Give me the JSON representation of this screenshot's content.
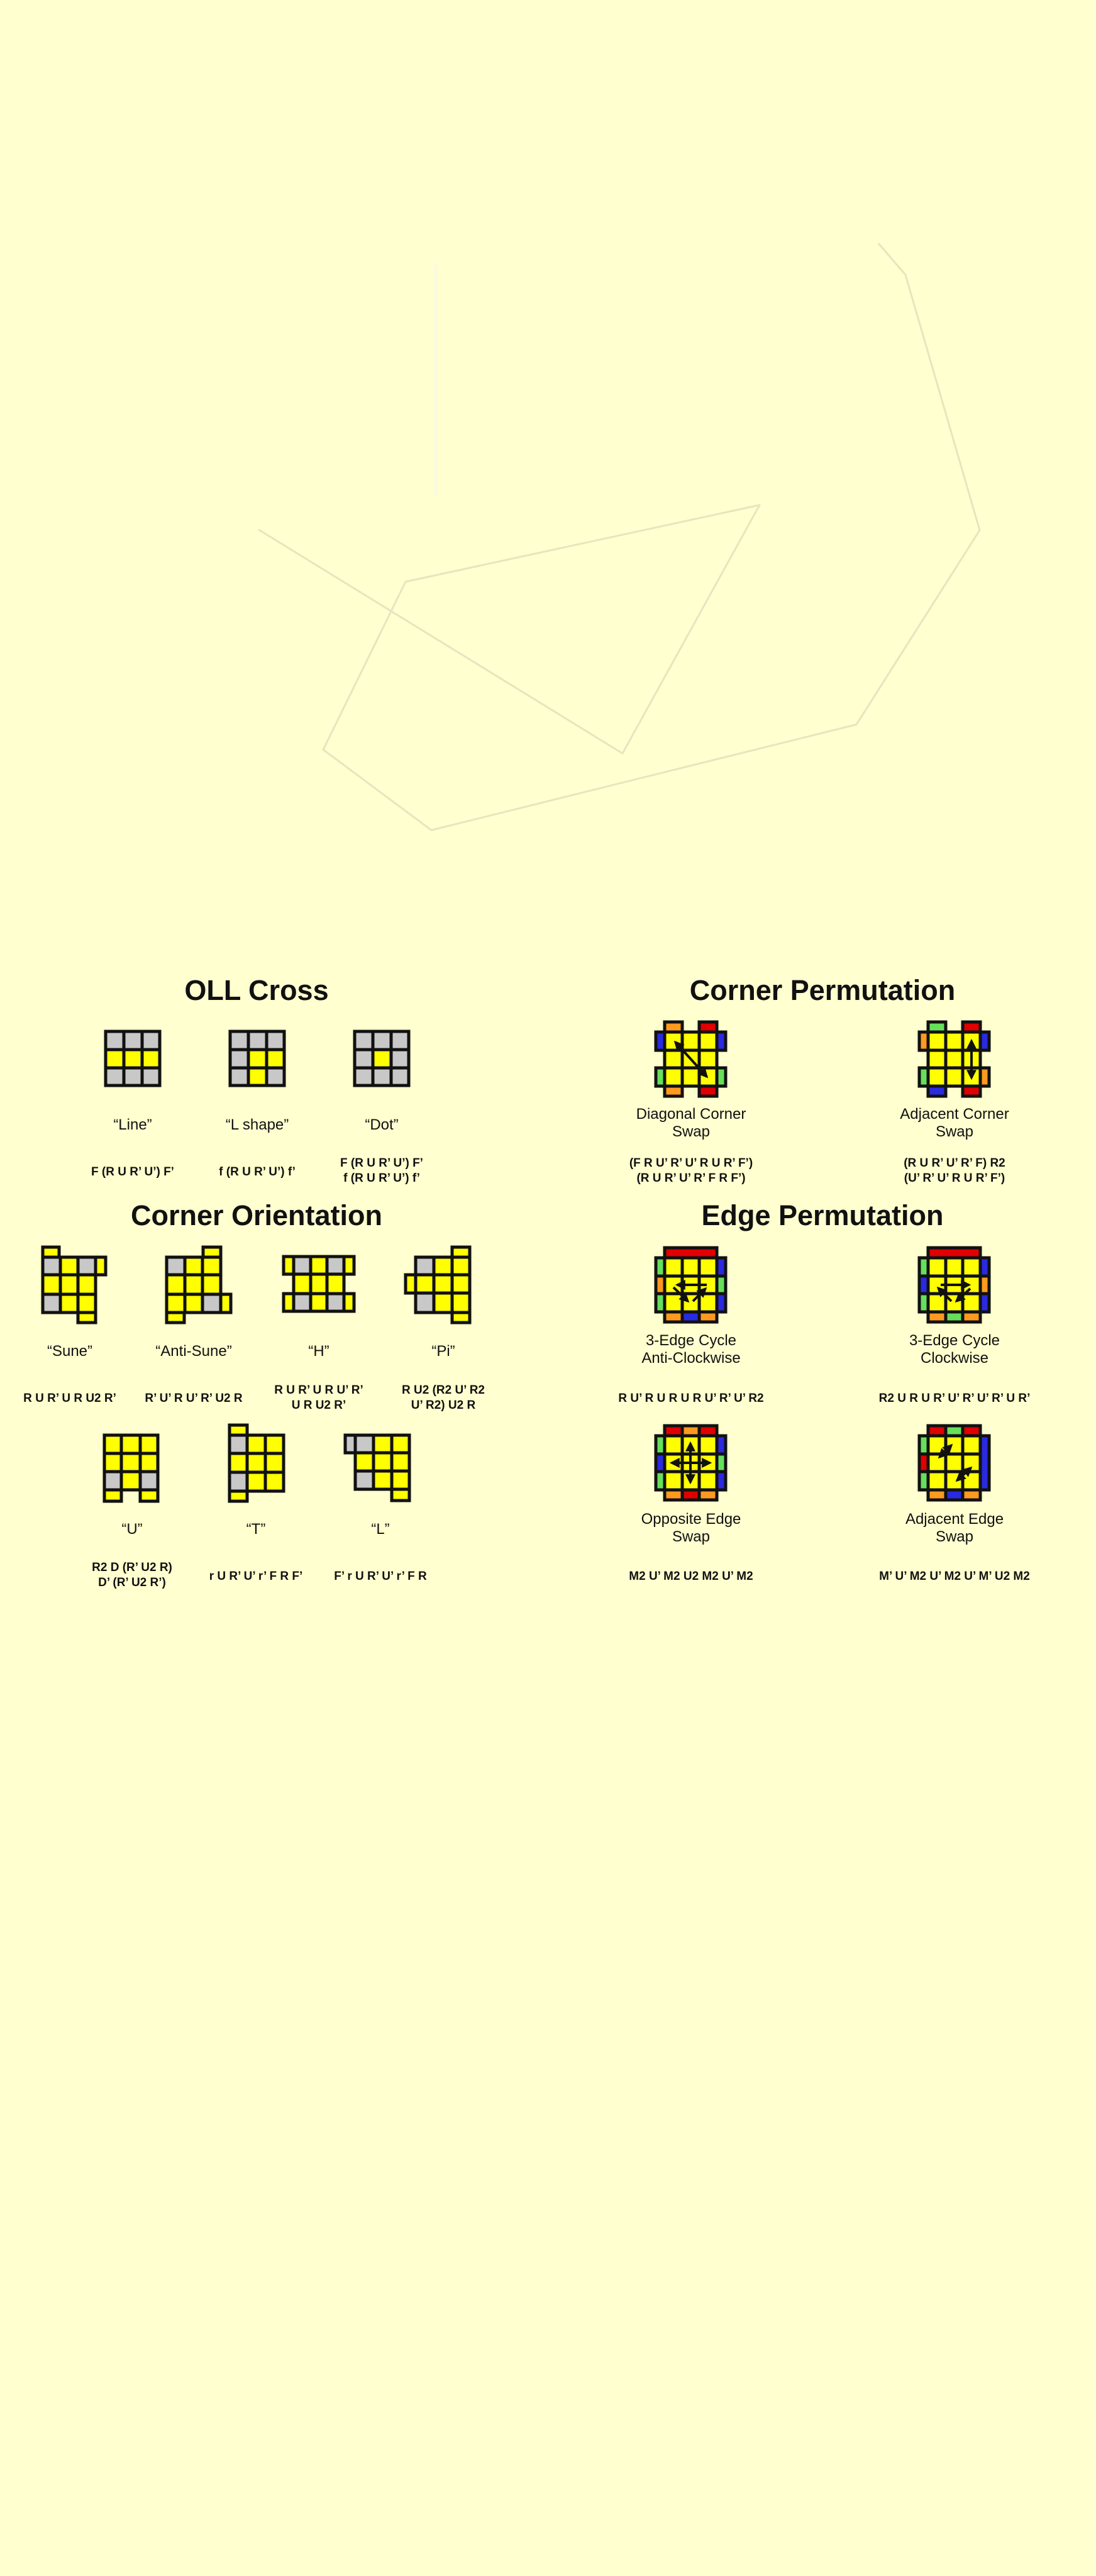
{
  "colors": {
    "background": "#ffffcf",
    "yellow": "#ffff00",
    "gray": "#c8c8c8",
    "red": "#e00000",
    "orange": "#ff9a1e",
    "blue": "#2a2ae0",
    "green": "#66e05a",
    "outline": "#111111",
    "watermark": "#e6e8c4"
  },
  "sections": {
    "oll_cross": {
      "title": "OLL Cross",
      "cases": [
        {
          "name": "“Line”",
          "alg": "F (R U R’ U’) F’"
        },
        {
          "name": "“L shape”",
          "alg": "f (R U R’ U’) f’"
        },
        {
          "name": "“Dot”",
          "alg": "F (R U R’ U’) F’\nf (R U R’ U’) f’"
        }
      ]
    },
    "corner_orientation": {
      "title": "Corner Orientation",
      "cases": [
        {
          "name": "“Sune”",
          "alg": "R U R’ U R U2 R’"
        },
        {
          "name": "“Anti-Sune”",
          "alg": "R’ U’ R U’ R’ U2 R"
        },
        {
          "name": "“H”",
          "alg": "R U R’ U R U’ R’\nU R U2 R’"
        },
        {
          "name": "“Pi”",
          "alg": "R U2 (R2 U’ R2\nU’ R2) U2 R"
        },
        {
          "name": "“U”",
          "alg": "R2 D (R’ U2 R)\nD’ (R’ U2 R’)"
        },
        {
          "name": "“T”",
          "alg": "r U R’ U’ r’ F R F’"
        },
        {
          "name": "“L”",
          "alg": "F’ r U R’ U’ r’ F R"
        }
      ]
    },
    "corner_permutation": {
      "title": "Corner Permutation",
      "cases": [
        {
          "name": "Diagonal Corner\nSwap",
          "alg": "(F R U’ R’ U’ R U R’ F’)\n(R U R’ U’ R’ F R F’)"
        },
        {
          "name": "Adjacent Corner\nSwap",
          "alg": "(R U R’ U’ R’ F) R2\n(U’ R’ U’ R U R’ F’)"
        }
      ]
    },
    "edge_permutation": {
      "title": "Edge Permutation",
      "cases": [
        {
          "name": "3-Edge Cycle\nAnti-Clockwise",
          "alg": "R U’ R U R U R U’ R’ U’ R2"
        },
        {
          "name": "3-Edge Cycle\nClockwise",
          "alg": "R2 U R U R’ U’ R’ U’ R’ U R’"
        },
        {
          "name": "Opposite Edge\nSwap",
          "alg": "M2 U’ M2 U2 M2 U’ M2"
        },
        {
          "name": "Adjacent Edge\nSwap",
          "alg": "M’ U’ M2 U’ M2 U’ M’ U2 M2"
        }
      ]
    }
  }
}
